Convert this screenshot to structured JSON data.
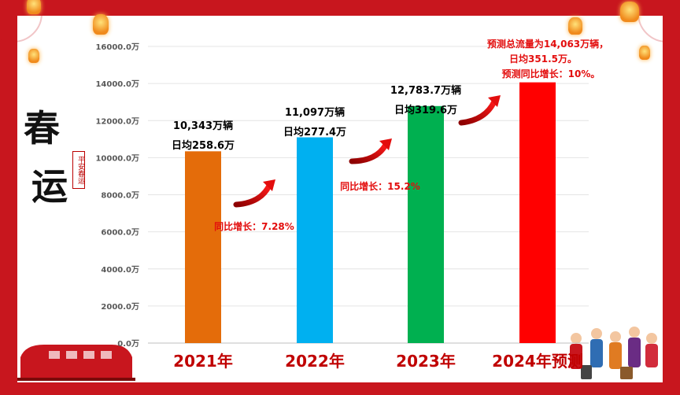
{
  "logo": {
    "main_chars": [
      "春",
      "运"
    ],
    "seal_text": "平安春运"
  },
  "colors": {
    "frame": "#c8161e",
    "bar_2021": "#e46c0a",
    "bar_2022": "#00b0f0",
    "bar_2023": "#00b050",
    "bar_2024": "#ff0000",
    "arrow": "#e30d0d",
    "highlight_text": "#e30d0d"
  },
  "chart_data": {
    "type": "bar",
    "categories": [
      "2021年",
      "2022年",
      "2023年",
      "2024年预测"
    ],
    "values": [
      10343,
      11097,
      12783.7,
      14063
    ],
    "ylim": [
      0,
      16000
    ],
    "yticks": [
      "0.0万",
      "2000.0万",
      "4000.0万",
      "6000.0万",
      "8000.0万",
      "10000.0万",
      "12000.0万",
      "14000.0万",
      "16000.0万"
    ],
    "grid": true,
    "bar_labels": [
      {
        "line1": "10,343万辆",
        "line2": "日均258.6万"
      },
      {
        "line1": "11,097万辆",
        "line2": "日均277.4万"
      },
      {
        "line1": "12,783.7万辆",
        "line2": "日均319.6万"
      }
    ],
    "growth_labels": [
      "同比增长：7.28%",
      "同比增长：15.2%"
    ],
    "forecast_note": [
      "预测总流量为14,063万辆，",
      "日均351.5万。",
      "预测同比增长：10%。"
    ]
  }
}
